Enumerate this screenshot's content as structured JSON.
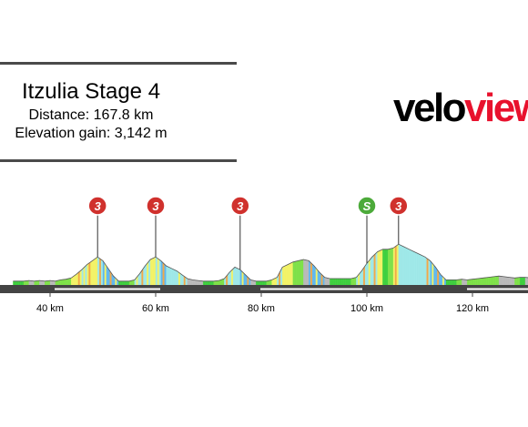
{
  "header": {
    "title": "Itzulia Stage 4",
    "distance": "Distance: 167.8 km",
    "elevation_gain": "Elevation gain: 3,142 m"
  },
  "logo": {
    "part1": "velo",
    "part2": "view",
    "color1": "#000000",
    "color2": "#e8112d"
  },
  "chart_data": {
    "type": "area",
    "title": "",
    "xlabel": "",
    "ylabel": "",
    "x_ticks": [
      {
        "km": 40,
        "label": "40 km"
      },
      {
        "km": 60,
        "label": "60 km"
      },
      {
        "km": 80,
        "label": "80 km"
      },
      {
        "km": 100,
        "label": "100 km"
      },
      {
        "km": 120,
        "label": "120 km"
      }
    ],
    "xlim": [
      33,
      134
    ],
    "profile": [
      [
        33,
        6
      ],
      [
        34,
        6
      ],
      [
        35,
        6
      ],
      [
        36,
        7
      ],
      [
        37,
        6
      ],
      [
        38,
        7
      ],
      [
        39,
        6
      ],
      [
        40,
        7
      ],
      [
        41,
        6
      ],
      [
        42,
        8
      ],
      [
        43,
        9
      ],
      [
        44,
        11
      ],
      [
        45,
        17
      ],
      [
        46,
        24
      ],
      [
        47,
        32
      ],
      [
        48,
        38
      ],
      [
        49,
        44
      ],
      [
        50,
        38
      ],
      [
        51,
        26
      ],
      [
        52,
        14
      ],
      [
        53,
        6
      ],
      [
        54,
        6
      ],
      [
        55,
        6
      ],
      [
        56,
        8
      ],
      [
        57,
        18
      ],
      [
        58,
        30
      ],
      [
        59,
        40
      ],
      [
        60,
        44
      ],
      [
        61,
        38
      ],
      [
        62,
        30
      ],
      [
        63,
        26
      ],
      [
        64,
        22
      ],
      [
        65,
        16
      ],
      [
        66,
        10
      ],
      [
        67,
        8
      ],
      [
        68,
        7
      ],
      [
        69,
        6
      ],
      [
        70,
        6
      ],
      [
        71,
        6
      ],
      [
        72,
        7
      ],
      [
        73,
        10
      ],
      [
        74,
        20
      ],
      [
        75,
        28
      ],
      [
        76,
        24
      ],
      [
        77,
        16
      ],
      [
        78,
        8
      ],
      [
        79,
        6
      ],
      [
        80,
        6
      ],
      [
        81,
        6
      ],
      [
        82,
        8
      ],
      [
        83,
        12
      ],
      [
        84,
        28
      ],
      [
        85,
        32
      ],
      [
        86,
        36
      ],
      [
        87,
        38
      ],
      [
        88,
        40
      ],
      [
        89,
        38
      ],
      [
        90,
        30
      ],
      [
        91,
        20
      ],
      [
        92,
        12
      ],
      [
        93,
        10
      ],
      [
        94,
        10
      ],
      [
        95,
        10
      ],
      [
        96,
        10
      ],
      [
        97,
        10
      ],
      [
        98,
        12
      ],
      [
        99,
        22
      ],
      [
        100,
        34
      ],
      [
        101,
        44
      ],
      [
        102,
        52
      ],
      [
        103,
        56
      ],
      [
        104,
        56
      ],
      [
        105,
        58
      ],
      [
        106,
        64
      ],
      [
        107,
        60
      ],
      [
        108,
        56
      ],
      [
        109,
        52
      ],
      [
        110,
        48
      ],
      [
        111,
        44
      ],
      [
        112,
        38
      ],
      [
        113,
        28
      ],
      [
        114,
        16
      ],
      [
        115,
        8
      ],
      [
        116,
        8
      ],
      [
        117,
        8
      ],
      [
        118,
        9
      ],
      [
        119,
        8
      ],
      [
        120,
        9
      ],
      [
        121,
        10
      ],
      [
        122,
        11
      ],
      [
        123,
        12
      ],
      [
        124,
        13
      ],
      [
        125,
        14
      ],
      [
        126,
        13
      ],
      [
        127,
        12
      ],
      [
        128,
        11
      ],
      [
        129,
        12
      ],
      [
        130,
        12
      ],
      [
        131,
        11
      ],
      [
        132,
        12
      ],
      [
        133,
        11
      ],
      [
        134,
        12
      ]
    ],
    "markers": [
      {
        "km": 49,
        "label": "3",
        "type": "climb",
        "color": "#d0312d"
      },
      {
        "km": 60,
        "label": "3",
        "type": "climb",
        "color": "#d0312d"
      },
      {
        "km": 76,
        "label": "3",
        "type": "climb",
        "color": "#d0312d"
      },
      {
        "km": 100,
        "label": "S",
        "type": "sprint",
        "color": "#4caa3a"
      },
      {
        "km": 106,
        "label": "3",
        "type": "climb",
        "color": "#d0312d"
      }
    ],
    "gradient_colors": [
      "#7ee048",
      "#3ecf3e",
      "#f2f266",
      "#9ee8e8",
      "#60b8f0",
      "#b9b9b9",
      "#f2a848",
      "#e85a3a"
    ],
    "ground_color": "#444444"
  }
}
